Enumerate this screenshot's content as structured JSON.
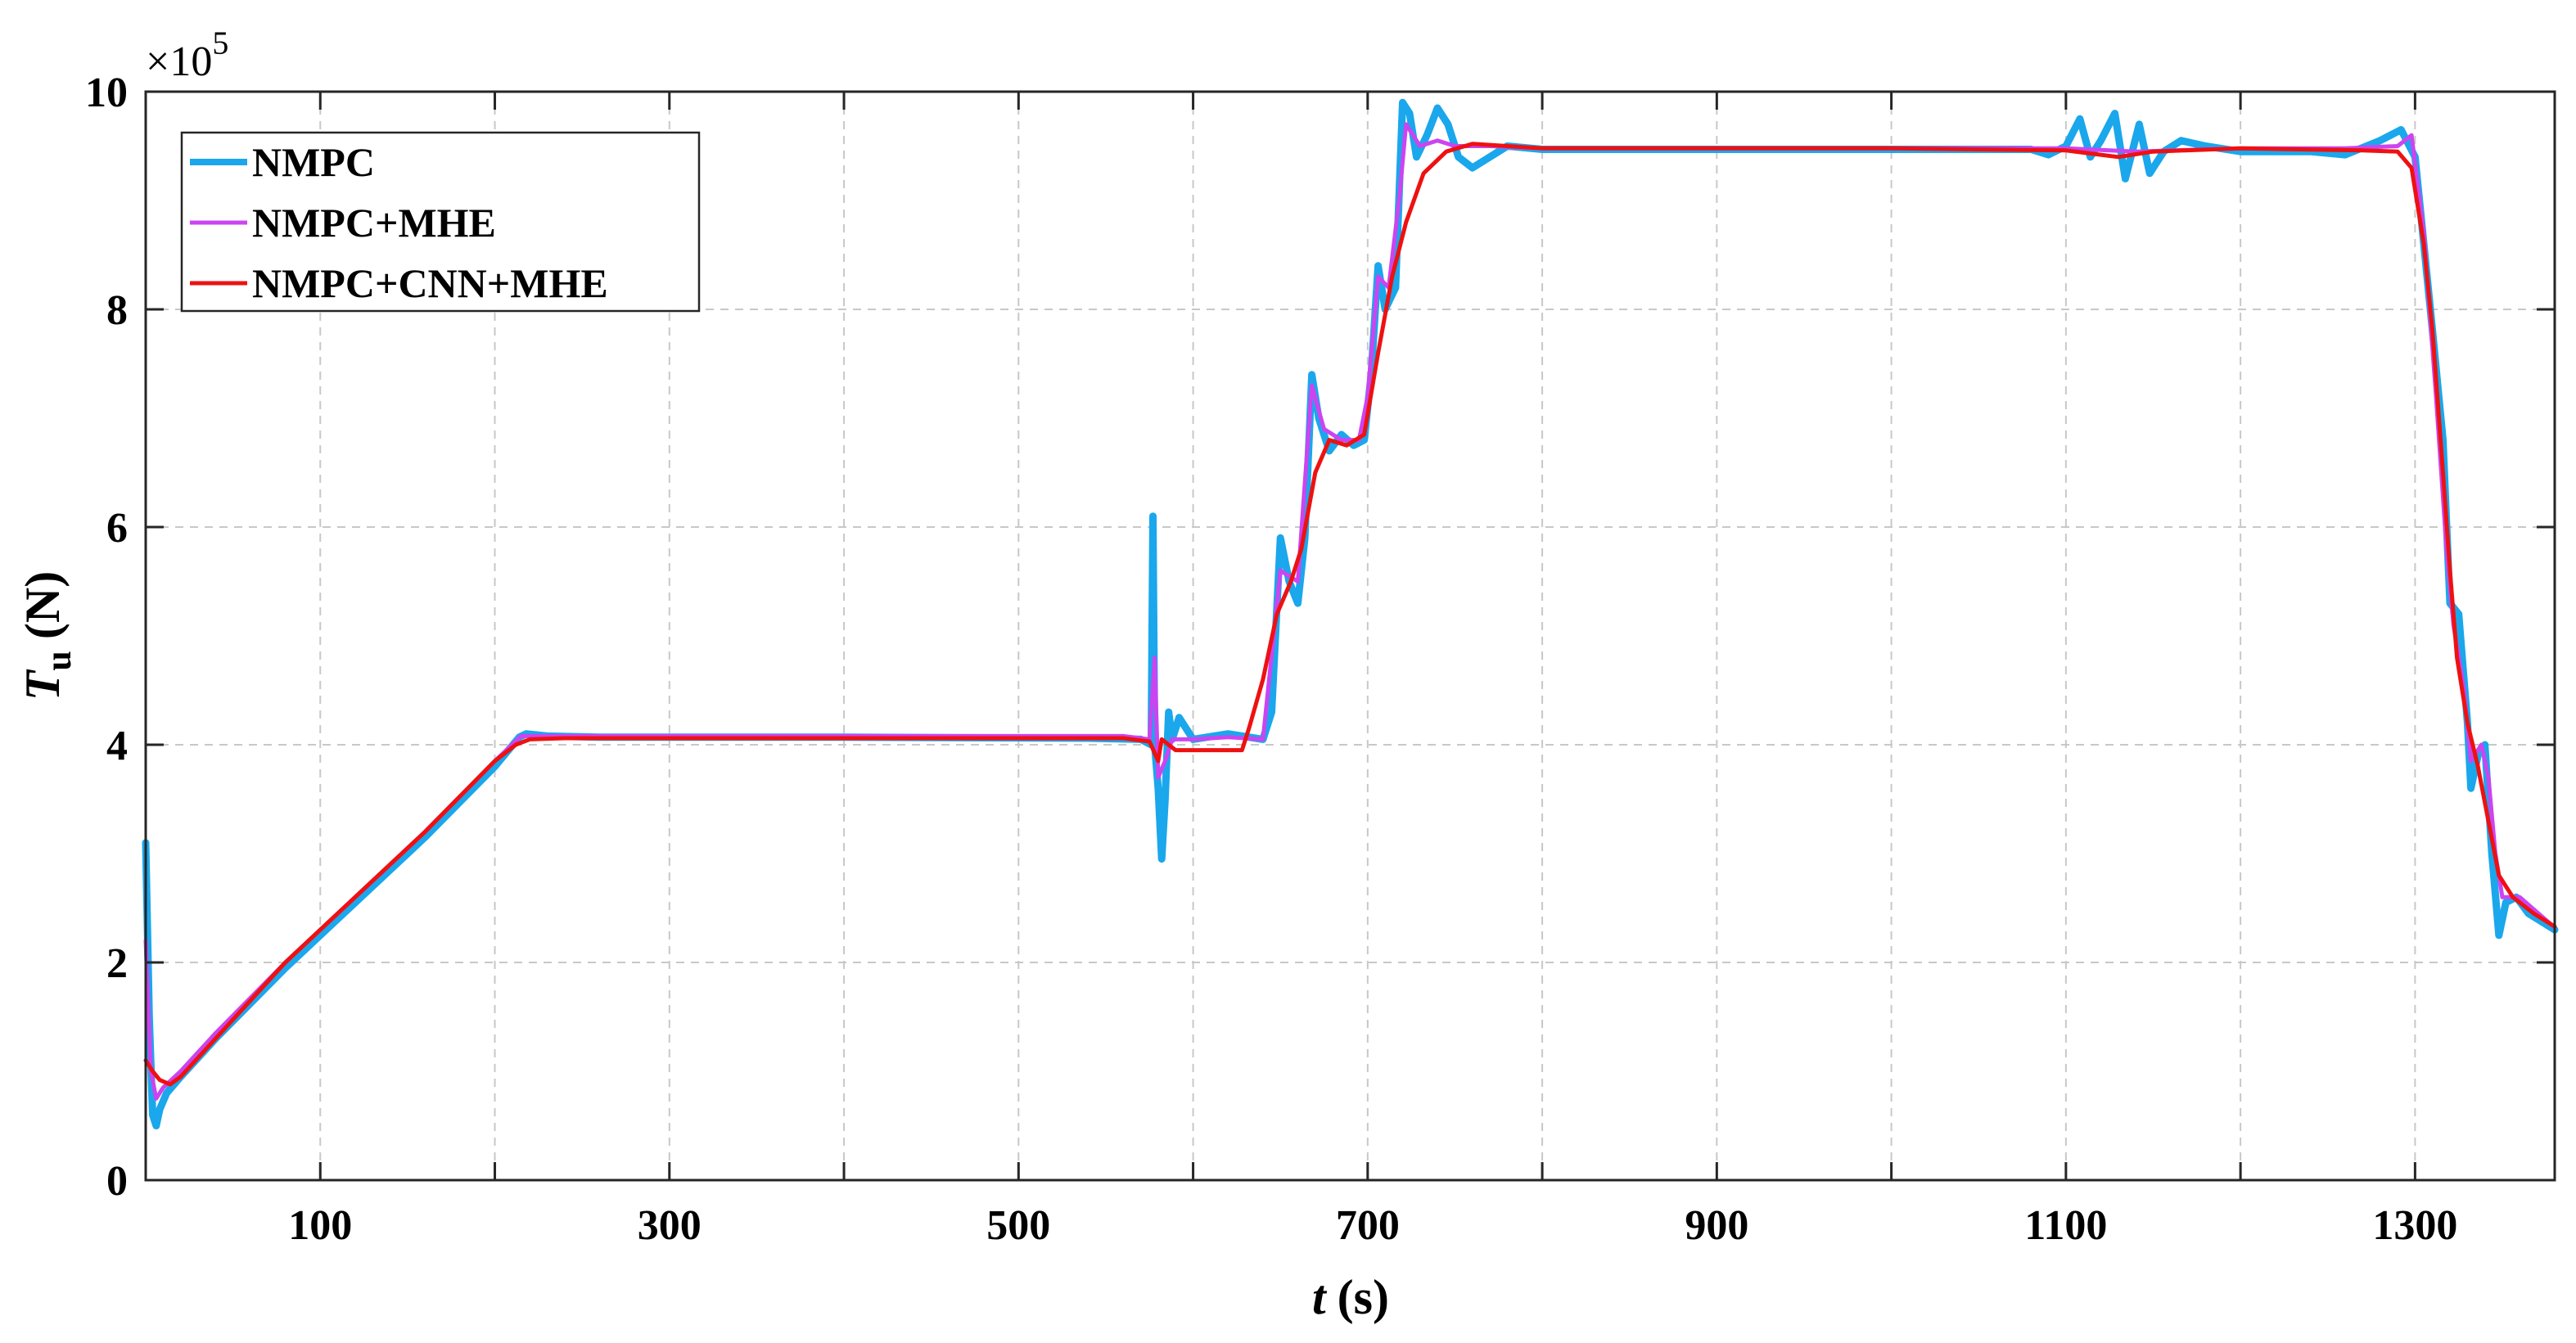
{
  "chart_data": {
    "type": "line",
    "xlabel_var": "t",
    "xlabel_unit": "(s)",
    "ylabel_var": "T",
    "ylabel_sub": "u",
    "ylabel_unit": "(N)",
    "y_multiplier_base": "×10",
    "y_multiplier_exp": "5",
    "xlim": [
      0,
      1380
    ],
    "ylim": [
      0,
      10
    ],
    "x_ticks": [
      100,
      300,
      500,
      700,
      900,
      1100,
      1300
    ],
    "x_grid": [
      0,
      100,
      200,
      300,
      400,
      500,
      600,
      700,
      800,
      900,
      1000,
      1100,
      1200,
      1300
    ],
    "y_ticks": [
      0,
      2,
      4,
      6,
      8,
      10
    ],
    "grid": true,
    "legend_position": "top-left",
    "series": [
      {
        "name": "NMPC",
        "color": "#1aa7ec",
        "points": [
          [
            0,
            3.1
          ],
          [
            2,
            1.5
          ],
          [
            4,
            0.6
          ],
          [
            6,
            0.5
          ],
          [
            8,
            0.65
          ],
          [
            12,
            0.8
          ],
          [
            20,
            0.95
          ],
          [
            40,
            1.3
          ],
          [
            80,
            1.95
          ],
          [
            120,
            2.55
          ],
          [
            160,
            3.15
          ],
          [
            200,
            3.8
          ],
          [
            214,
            4.07
          ],
          [
            218,
            4.1
          ],
          [
            230,
            4.08
          ],
          [
            260,
            4.07
          ],
          [
            400,
            4.07
          ],
          [
            540,
            4.06
          ],
          [
            570,
            4.05
          ],
          [
            576,
            4.0
          ],
          [
            577,
            6.1
          ],
          [
            578,
            4.0
          ],
          [
            580,
            3.6
          ],
          [
            582,
            2.95
          ],
          [
            584,
            3.5
          ],
          [
            586,
            4.3
          ],
          [
            588,
            4.05
          ],
          [
            592,
            4.25
          ],
          [
            600,
            4.05
          ],
          [
            620,
            4.1
          ],
          [
            640,
            4.05
          ],
          [
            645,
            4.3
          ],
          [
            650,
            5.9
          ],
          [
            655,
            5.5
          ],
          [
            660,
            5.3
          ],
          [
            664,
            5.9
          ],
          [
            668,
            7.4
          ],
          [
            672,
            7.0
          ],
          [
            678,
            6.7
          ],
          [
            685,
            6.85
          ],
          [
            692,
            6.75
          ],
          [
            698,
            6.8
          ],
          [
            702,
            7.4
          ],
          [
            706,
            8.4
          ],
          [
            710,
            8.0
          ],
          [
            716,
            8.2
          ],
          [
            720,
            9.9
          ],
          [
            724,
            9.8
          ],
          [
            728,
            9.4
          ],
          [
            734,
            9.6
          ],
          [
            740,
            9.85
          ],
          [
            746,
            9.7
          ],
          [
            752,
            9.4
          ],
          [
            760,
            9.3
          ],
          [
            770,
            9.4
          ],
          [
            780,
            9.5
          ],
          [
            800,
            9.47
          ],
          [
            900,
            9.47
          ],
          [
            1000,
            9.47
          ],
          [
            1080,
            9.47
          ],
          [
            1090,
            9.42
          ],
          [
            1100,
            9.5
          ],
          [
            1108,
            9.75
          ],
          [
            1114,
            9.4
          ],
          [
            1120,
            9.55
          ],
          [
            1128,
            9.8
          ],
          [
            1134,
            9.2
          ],
          [
            1142,
            9.7
          ],
          [
            1148,
            9.25
          ],
          [
            1156,
            9.45
          ],
          [
            1166,
            9.55
          ],
          [
            1180,
            9.5
          ],
          [
            1200,
            9.45
          ],
          [
            1240,
            9.45
          ],
          [
            1260,
            9.42
          ],
          [
            1280,
            9.55
          ],
          [
            1292,
            9.65
          ],
          [
            1300,
            9.4
          ],
          [
            1305,
            8.6
          ],
          [
            1310,
            7.8
          ],
          [
            1316,
            6.8
          ],
          [
            1320,
            5.3
          ],
          [
            1325,
            5.2
          ],
          [
            1330,
            4.2
          ],
          [
            1332,
            3.6
          ],
          [
            1336,
            3.9
          ],
          [
            1340,
            4.0
          ],
          [
            1344,
            3.0
          ],
          [
            1348,
            2.25
          ],
          [
            1352,
            2.55
          ],
          [
            1358,
            2.6
          ],
          [
            1365,
            2.45
          ],
          [
            1380,
            2.3
          ]
        ]
      },
      {
        "name": "NMPC+MHE",
        "color": "#cc44f0",
        "points": [
          [
            0,
            2.2
          ],
          [
            3,
            1.0
          ],
          [
            6,
            0.75
          ],
          [
            10,
            0.85
          ],
          [
            20,
            1.0
          ],
          [
            40,
            1.35
          ],
          [
            80,
            2.0
          ],
          [
            120,
            2.6
          ],
          [
            160,
            3.2
          ],
          [
            200,
            3.85
          ],
          [
            215,
            4.08
          ],
          [
            230,
            4.08
          ],
          [
            400,
            4.08
          ],
          [
            560,
            4.08
          ],
          [
            575,
            4.05
          ],
          [
            578,
            4.8
          ],
          [
            580,
            3.7
          ],
          [
            584,
            3.85
          ],
          [
            588,
            4.05
          ],
          [
            600,
            4.05
          ],
          [
            620,
            4.07
          ],
          [
            640,
            4.05
          ],
          [
            650,
            5.6
          ],
          [
            660,
            5.5
          ],
          [
            668,
            7.3
          ],
          [
            675,
            6.9
          ],
          [
            685,
            6.8
          ],
          [
            695,
            6.8
          ],
          [
            700,
            7.2
          ],
          [
            706,
            8.3
          ],
          [
            712,
            8.2
          ],
          [
            718,
            9.0
          ],
          [
            722,
            9.7
          ],
          [
            730,
            9.5
          ],
          [
            740,
            9.55
          ],
          [
            750,
            9.5
          ],
          [
            770,
            9.5
          ],
          [
            800,
            9.48
          ],
          [
            1000,
            9.48
          ],
          [
            1100,
            9.48
          ],
          [
            1140,
            9.45
          ],
          [
            1200,
            9.48
          ],
          [
            1260,
            9.48
          ],
          [
            1290,
            9.5
          ],
          [
            1298,
            9.6
          ],
          [
            1305,
            8.7
          ],
          [
            1312,
            7.2
          ],
          [
            1318,
            5.8
          ],
          [
            1322,
            5.1
          ],
          [
            1328,
            4.5
          ],
          [
            1332,
            3.85
          ],
          [
            1338,
            4.0
          ],
          [
            1342,
            3.7
          ],
          [
            1346,
            3.0
          ],
          [
            1350,
            2.6
          ],
          [
            1360,
            2.6
          ],
          [
            1380,
            2.32
          ]
        ]
      },
      {
        "name": "NMPC+CNN+MHE",
        "color": "#ee1111",
        "points": [
          [
            0,
            1.1
          ],
          [
            4,
            1.0
          ],
          [
            8,
            0.92
          ],
          [
            14,
            0.88
          ],
          [
            20,
            0.95
          ],
          [
            40,
            1.3
          ],
          [
            80,
            2.0
          ],
          [
            120,
            2.6
          ],
          [
            160,
            3.2
          ],
          [
            200,
            3.85
          ],
          [
            212,
            4.0
          ],
          [
            220,
            4.05
          ],
          [
            240,
            4.06
          ],
          [
            400,
            4.06
          ],
          [
            560,
            4.06
          ],
          [
            575,
            4.03
          ],
          [
            580,
            3.85
          ],
          [
            582,
            4.05
          ],
          [
            590,
            3.95
          ],
          [
            610,
            3.95
          ],
          [
            628,
            3.95
          ],
          [
            632,
            4.15
          ],
          [
            640,
            4.6
          ],
          [
            648,
            5.2
          ],
          [
            656,
            5.5
          ],
          [
            662,
            5.8
          ],
          [
            670,
            6.5
          ],
          [
            678,
            6.8
          ],
          [
            688,
            6.75
          ],
          [
            698,
            6.85
          ],
          [
            706,
            7.6
          ],
          [
            714,
            8.3
          ],
          [
            722,
            8.8
          ],
          [
            732,
            9.25
          ],
          [
            745,
            9.45
          ],
          [
            760,
            9.52
          ],
          [
            780,
            9.5
          ],
          [
            800,
            9.48
          ],
          [
            1000,
            9.48
          ],
          [
            1100,
            9.46
          ],
          [
            1130,
            9.4
          ],
          [
            1150,
            9.45
          ],
          [
            1200,
            9.48
          ],
          [
            1270,
            9.46
          ],
          [
            1290,
            9.45
          ],
          [
            1298,
            9.3
          ],
          [
            1305,
            8.6
          ],
          [
            1310,
            7.8
          ],
          [
            1316,
            6.5
          ],
          [
            1320,
            5.6
          ],
          [
            1324,
            4.8
          ],
          [
            1330,
            4.2
          ],
          [
            1336,
            3.8
          ],
          [
            1342,
            3.3
          ],
          [
            1348,
            2.8
          ],
          [
            1356,
            2.6
          ],
          [
            1368,
            2.45
          ],
          [
            1380,
            2.33
          ]
        ]
      }
    ]
  }
}
